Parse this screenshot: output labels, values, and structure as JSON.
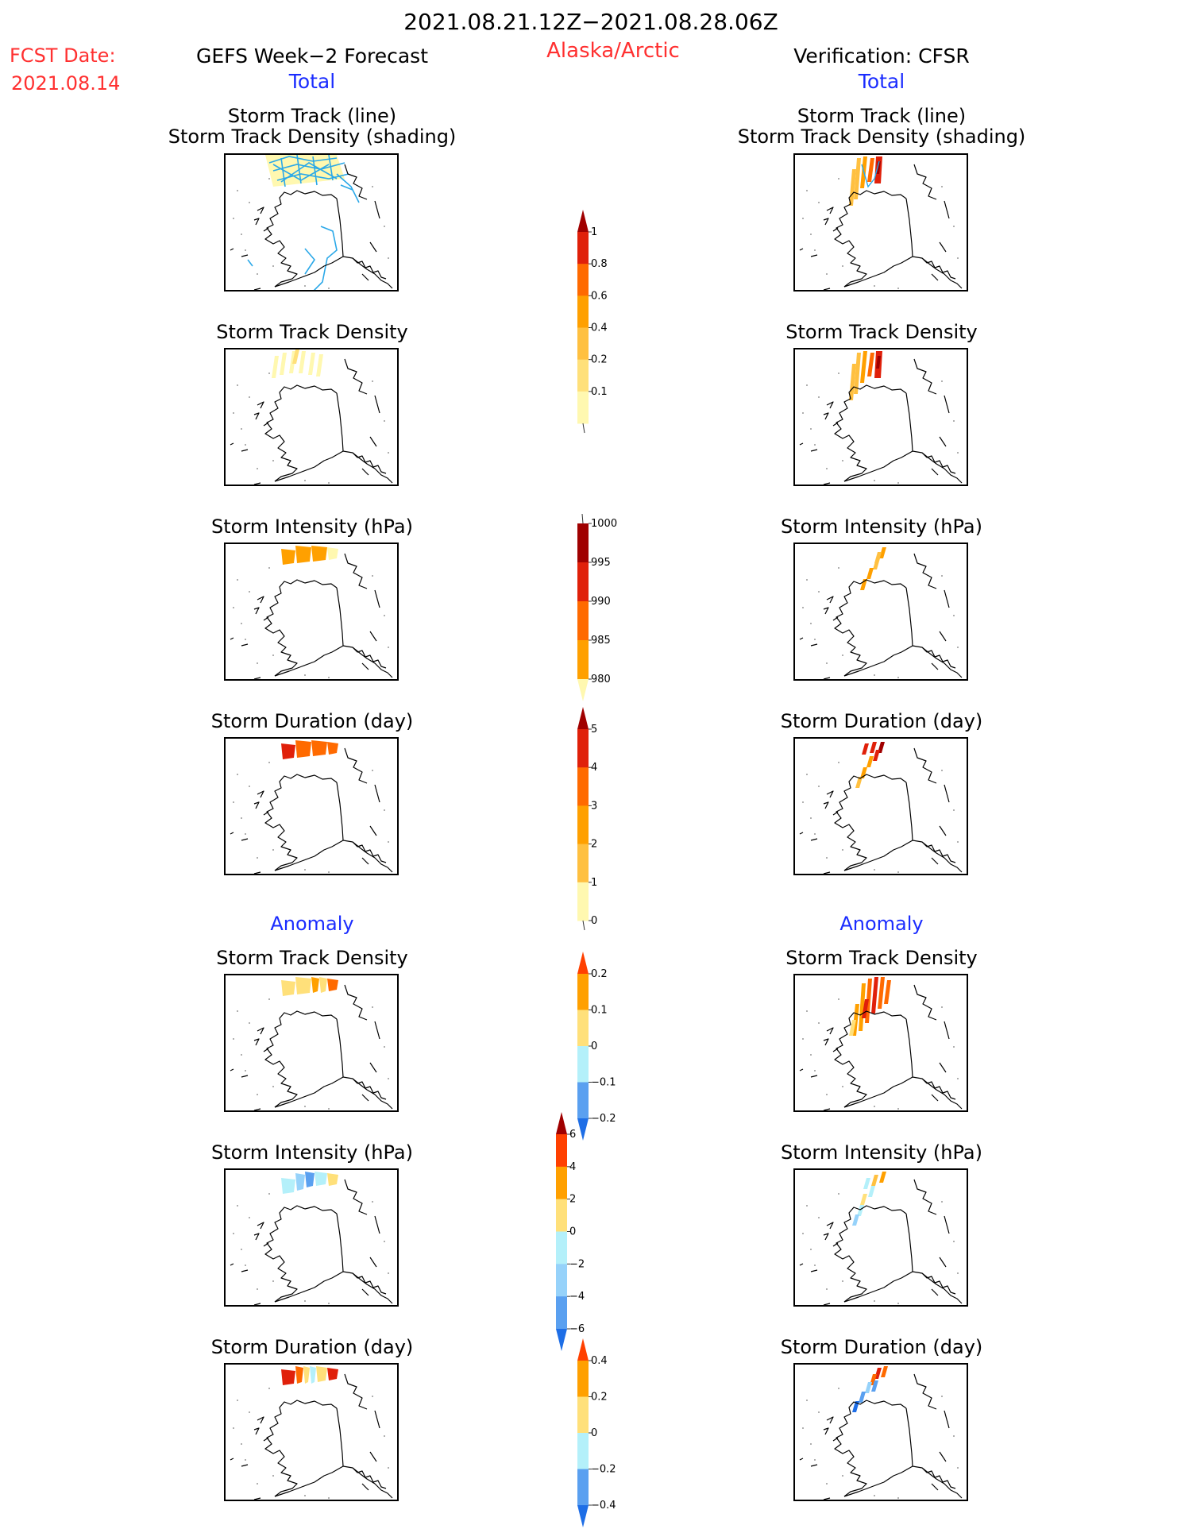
{
  "header": {
    "period": "2021.08.21.12Z−2021.08.28.06Z",
    "region": "Alaska/Arctic",
    "fcst_label": "FCST Date:",
    "fcst_date": "2021.08.14",
    "left_title": "GEFS Week−2 Forecast",
    "right_title": "Verification: CFSR",
    "left_total": "Total",
    "right_total": "Total",
    "left_anomaly": "Anomaly",
    "right_anomaly": "Anomaly"
  },
  "panel_titles": {
    "track_line": "Storm Track (line)",
    "track_shading": "Storm Track Density (shading)",
    "density": "Storm Track Density",
    "intensity": "Storm Intensity (hPa)",
    "duration": "Storm Duration (day)"
  },
  "colors": {
    "light_yellow": "#fff8b0",
    "yellow": "#ffe07a",
    "light_orange": "#ffc040",
    "orange": "#ffa000",
    "dark_orange": "#ff6a00",
    "red": "#e0200a",
    "dark_red": "#a00000",
    "light_blue": "#b4f0fa",
    "sky_blue": "#96d2fa",
    "blue": "#5aa0f0",
    "dark_blue": "#1e6ee6",
    "track_line": "#2aa8e8"
  },
  "chart_data": {
    "type": "heatmap",
    "colorbars": [
      {
        "id": "density_total",
        "labels": [
          "1",
          "0.8",
          "0.6",
          "0.4",
          "0.2",
          "0.1"
        ],
        "colors": [
          "#fff8b0",
          "#ffe07a",
          "#ffc040",
          "#ffa000",
          "#ff6a00",
          "#e0200a",
          "#a00000"
        ],
        "arrow_top": true,
        "arrow_bottom": false
      },
      {
        "id": "intensity_total",
        "labels": [
          "1000",
          "995",
          "990",
          "985",
          "980"
        ],
        "colors": [
          "#fff8b0",
          "#ffa000",
          "#ff6a00",
          "#e0200a",
          "#a00000"
        ],
        "arrow_top": false,
        "arrow_bottom": true
      },
      {
        "id": "duration_total",
        "labels": [
          "5",
          "4",
          "3",
          "2",
          "1",
          "0"
        ],
        "colors": [
          "#fff8b0",
          "#ffc040",
          "#ffa000",
          "#ff6a00",
          "#e0200a",
          "#a00000"
        ],
        "arrow_top": true,
        "arrow_bottom": false
      },
      {
        "id": "density_anomaly",
        "labels": [
          "0.2",
          "0.1",
          "0",
          "−0.1",
          "−0.2"
        ],
        "colors": [
          "#1e6ee6",
          "#5aa0f0",
          "#b4f0fa",
          "#ffe07a",
          "#ffa000",
          "#ff4000"
        ],
        "arrow_top": true,
        "arrow_bottom": true
      },
      {
        "id": "intensity_anomaly",
        "labels": [
          "6",
          "4",
          "2",
          "0",
          "−2",
          "−4",
          "−6"
        ],
        "colors": [
          "#1e6ee6",
          "#5aa0f0",
          "#96d2fa",
          "#b4f0fa",
          "#ffe07a",
          "#ffa000",
          "#ff4000",
          "#a00000"
        ],
        "arrow_top": true,
        "arrow_bottom": true
      },
      {
        "id": "duration_anomaly",
        "labels": [
          "0.4",
          "0.2",
          "0",
          "−0.2",
          "−0.4"
        ],
        "colors": [
          "#1e6ee6",
          "#5aa0f0",
          "#b4f0fa",
          "#ffe07a",
          "#ffa000",
          "#ff4000"
        ],
        "arrow_top": true,
        "arrow_bottom": true
      }
    ]
  }
}
